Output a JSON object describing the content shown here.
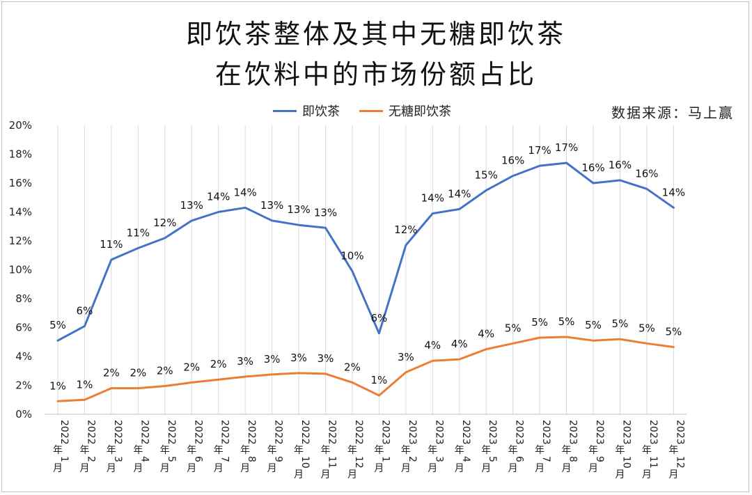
{
  "header": {
    "title_line1": "即饮茶整体及其中无糖即饮茶",
    "title_line2": "在饮料中的市场份额占比",
    "source": "数据来源：马上赢"
  },
  "colors": {
    "series1": "#4472c4",
    "series2": "#ed7d31",
    "gridline": "#d9d9d9"
  },
  "chart_data": {
    "type": "line",
    "title": "即饮茶整体及其中无糖即饮茶在饮料中的市场份额占比",
    "xlabel": "",
    "ylabel": "",
    "ylim": [
      0,
      20
    ],
    "y_ticks": [
      "0%",
      "2%",
      "4%",
      "6%",
      "8%",
      "10%",
      "12%",
      "14%",
      "16%",
      "18%",
      "20%"
    ],
    "legend_position": "top",
    "categories": [
      "2022年1月",
      "2022年2月",
      "2022年3月",
      "2022年4月",
      "2022年5月",
      "2022年6月",
      "2022年7月",
      "2022年8月",
      "2022年9月",
      "2022年10月",
      "2022年11月",
      "2022年12月",
      "2023年1月",
      "2023年2月",
      "2023年3月",
      "2023年4月",
      "2023年5月",
      "2023年6月",
      "2023年7月",
      "2023年8月",
      "2023年9月",
      "2023年10月",
      "2023年11月",
      "2023年12月"
    ],
    "series": [
      {
        "name": "即饮茶",
        "values": [
          5.1,
          6.1,
          10.7,
          11.5,
          12.2,
          13.4,
          14.0,
          14.3,
          13.4,
          13.1,
          12.9,
          9.9,
          5.6,
          11.7,
          13.9,
          14.2,
          15.5,
          16.5,
          17.2,
          17.4,
          16.0,
          16.2,
          15.6,
          14.3
        ],
        "labels": [
          "5%",
          "6%",
          "11%",
          "11%",
          "12%",
          "13%",
          "14%",
          "14%",
          "13%",
          "13%",
          "13%",
          "10%",
          "6%",
          "12%",
          "14%",
          "14%",
          "15%",
          "16%",
          "17%",
          "17%",
          "16%",
          "16%",
          "16%",
          "14%"
        ]
      },
      {
        "name": "无糖即饮茶",
        "values": [
          0.9,
          1.0,
          1.8,
          1.8,
          1.95,
          2.2,
          2.4,
          2.6,
          2.75,
          2.85,
          2.8,
          2.2,
          1.3,
          2.9,
          3.7,
          3.8,
          4.5,
          4.9,
          5.3,
          5.35,
          5.1,
          5.2,
          4.9,
          4.65
        ],
        "labels": [
          "1%",
          "1%",
          "2%",
          "2%",
          "2%",
          "2%",
          "2%",
          "3%",
          "3%",
          "3%",
          "3%",
          "2%",
          "1%",
          "3%",
          "4%",
          "4%",
          "4%",
          "5%",
          "5%",
          "5%",
          "5%",
          "5%",
          "5%",
          "5%"
        ]
      }
    ]
  }
}
